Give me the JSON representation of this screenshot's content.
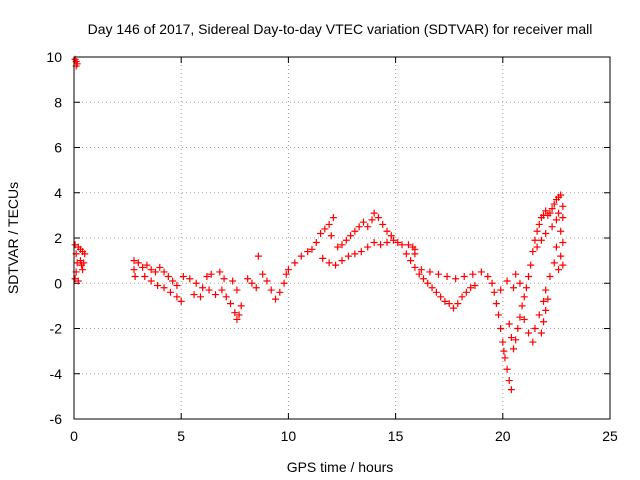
{
  "chart_data": {
    "type": "scatter",
    "title": "Day 146 of 2017, Sidereal Day-to-day VTEC variation (SDTVAR) for receiver mall",
    "xlabel": "GPS time / hours",
    "ylabel": "SDTVAR / TECUs",
    "xlim": [
      0,
      25
    ],
    "ylim": [
      -6,
      10
    ],
    "xticks": [
      0,
      5,
      10,
      15,
      20,
      25
    ],
    "yticks": [
      -6,
      -4,
      -2,
      0,
      2,
      4,
      6,
      8,
      10
    ],
    "xtick_labels": [
      "0",
      "5",
      "10",
      "15",
      "20",
      "25"
    ],
    "ytick_labels": [
      "-6",
      "-4",
      "-2",
      "0",
      "2",
      "4",
      "6",
      "8",
      "10"
    ],
    "grid": true,
    "marker": "+",
    "color": "#ff0000",
    "series": [
      {
        "name": "SDTVAR",
        "points": [
          [
            0.05,
            9.9
          ],
          [
            0.1,
            9.8
          ],
          [
            0.15,
            9.7
          ],
          [
            0.1,
            9.6
          ],
          [
            0.05,
            1.7
          ],
          [
            0.1,
            1.3
          ],
          [
            0.15,
            0.9
          ],
          [
            0.1,
            0.5
          ],
          [
            0.05,
            0.2
          ],
          [
            0.2,
            1.6
          ],
          [
            0.3,
            1.5
          ],
          [
            0.4,
            1.4
          ],
          [
            0.5,
            1.3
          ],
          [
            0.3,
            1.0
          ],
          [
            0.35,
            0.8
          ],
          [
            0.4,
            0.6
          ],
          [
            0.45,
            0.9
          ],
          [
            0.2,
            0.1
          ],
          [
            2.8,
            1.0
          ],
          [
            2.8,
            0.6
          ],
          [
            2.85,
            0.3
          ],
          [
            3.0,
            0.9
          ],
          [
            3.2,
            0.7
          ],
          [
            3.4,
            0.8
          ],
          [
            3.6,
            0.6
          ],
          [
            3.8,
            0.5
          ],
          [
            4.0,
            0.7
          ],
          [
            4.2,
            0.5
          ],
          [
            4.4,
            0.3
          ],
          [
            4.6,
            0.1
          ],
          [
            4.8,
            -0.1
          ],
          [
            3.3,
            0.3
          ],
          [
            3.6,
            0.1
          ],
          [
            3.9,
            -0.1
          ],
          [
            4.2,
            -0.2
          ],
          [
            4.5,
            -0.4
          ],
          [
            4.8,
            -0.6
          ],
          [
            5.0,
            -0.8
          ],
          [
            5.1,
            0.3
          ],
          [
            5.4,
            0.2
          ],
          [
            5.7,
            0.0
          ],
          [
            6.0,
            -0.2
          ],
          [
            6.3,
            -0.3
          ],
          [
            6.6,
            -0.5
          ],
          [
            6.9,
            -0.3
          ],
          [
            7.1,
            -0.6
          ],
          [
            7.3,
            -0.9
          ],
          [
            7.5,
            -1.3
          ],
          [
            7.6,
            -1.6
          ],
          [
            7.7,
            -1.4
          ],
          [
            7.8,
            -1.0
          ],
          [
            7.4,
            0.1
          ],
          [
            7.6,
            -0.3
          ],
          [
            6.4,
            0.4
          ],
          [
            6.8,
            0.5
          ],
          [
            7.0,
            0.2
          ],
          [
            5.6,
            -0.5
          ],
          [
            5.9,
            -0.6
          ],
          [
            6.2,
            0.3
          ],
          [
            8.1,
            0.2
          ],
          [
            8.3,
            0.0
          ],
          [
            8.5,
            -0.2
          ],
          [
            8.6,
            1.2
          ],
          [
            8.8,
            0.4
          ],
          [
            9.0,
            0.1
          ],
          [
            9.2,
            -0.3
          ],
          [
            9.4,
            -0.7
          ],
          [
            9.6,
            -0.4
          ],
          [
            9.8,
            0.0
          ],
          [
            9.9,
            0.4
          ],
          [
            10.0,
            0.6
          ],
          [
            10.3,
            0.9
          ],
          [
            10.6,
            1.2
          ],
          [
            10.9,
            1.4
          ],
          [
            11.1,
            1.5
          ],
          [
            11.3,
            1.8
          ],
          [
            11.5,
            2.2
          ],
          [
            11.7,
            2.4
          ],
          [
            11.9,
            2.6
          ],
          [
            12.1,
            2.9
          ],
          [
            12.0,
            2.1
          ],
          [
            12.3,
            1.6
          ],
          [
            12.5,
            1.7
          ],
          [
            12.7,
            1.9
          ],
          [
            12.9,
            2.1
          ],
          [
            13.1,
            2.3
          ],
          [
            13.3,
            2.5
          ],
          [
            13.5,
            2.7
          ],
          [
            13.7,
            2.5
          ],
          [
            13.9,
            2.8
          ],
          [
            14.0,
            3.1
          ],
          [
            14.2,
            2.9
          ],
          [
            14.4,
            2.6
          ],
          [
            14.6,
            2.3
          ],
          [
            14.8,
            2.1
          ],
          [
            11.6,
            1.1
          ],
          [
            11.9,
            0.9
          ],
          [
            12.2,
            0.8
          ],
          [
            12.5,
            1.0
          ],
          [
            12.8,
            1.2
          ],
          [
            13.1,
            1.3
          ],
          [
            13.4,
            1.4
          ],
          [
            13.7,
            1.6
          ],
          [
            14.0,
            1.8
          ],
          [
            14.3,
            1.7
          ],
          [
            14.6,
            1.8
          ],
          [
            14.9,
            1.9
          ],
          [
            15.1,
            1.8
          ],
          [
            15.3,
            1.7
          ],
          [
            15.6,
            1.7
          ],
          [
            15.8,
            1.6
          ],
          [
            15.9,
            1.5
          ],
          [
            15.9,
            1.3
          ],
          [
            15.5,
            1.3
          ],
          [
            15.7,
            1.0
          ],
          [
            15.9,
            0.7
          ],
          [
            16.1,
            0.4
          ],
          [
            16.3,
            0.2
          ],
          [
            16.5,
            0.0
          ],
          [
            16.7,
            -0.2
          ],
          [
            16.9,
            -0.4
          ],
          [
            17.1,
            -0.6
          ],
          [
            17.3,
            -0.8
          ],
          [
            17.5,
            -0.9
          ],
          [
            17.7,
            -1.1
          ],
          [
            17.9,
            -0.9
          ],
          [
            18.1,
            -0.6
          ],
          [
            18.3,
            -0.4
          ],
          [
            18.5,
            -0.2
          ],
          [
            18.7,
            -0.1
          ],
          [
            16.2,
            0.6
          ],
          [
            16.6,
            0.5
          ],
          [
            17.0,
            0.4
          ],
          [
            17.4,
            0.3
          ],
          [
            17.8,
            0.2
          ],
          [
            18.2,
            0.3
          ],
          [
            18.6,
            0.4
          ],
          [
            19.0,
            0.5
          ],
          [
            19.3,
            0.3
          ],
          [
            19.5,
            0.0
          ],
          [
            19.6,
            -0.4
          ],
          [
            19.7,
            -0.9
          ],
          [
            19.8,
            -1.4
          ],
          [
            19.9,
            -2.0
          ],
          [
            20.0,
            -2.6
          ],
          [
            20.05,
            -3.0
          ],
          [
            20.1,
            -3.3
          ],
          [
            20.2,
            -3.8
          ],
          [
            20.3,
            -4.3
          ],
          [
            20.4,
            -4.7
          ],
          [
            20.3,
            -1.8
          ],
          [
            20.4,
            -2.4
          ],
          [
            20.5,
            -2.9
          ],
          [
            20.6,
            -2.5
          ],
          [
            20.7,
            -2.0
          ],
          [
            20.8,
            -1.5
          ],
          [
            20.9,
            -1.0
          ],
          [
            21.0,
            -0.6
          ],
          [
            21.1,
            -0.2
          ],
          [
            21.2,
            0.3
          ],
          [
            21.3,
            0.8
          ],
          [
            21.4,
            1.4
          ],
          [
            21.5,
            1.9
          ],
          [
            21.6,
            2.3
          ],
          [
            21.7,
            2.6
          ],
          [
            21.8,
            2.9
          ],
          [
            21.9,
            3.0
          ],
          [
            22.0,
            3.2
          ],
          [
            22.1,
            3.0
          ],
          [
            22.2,
            3.1
          ],
          [
            22.3,
            3.3
          ],
          [
            22.4,
            3.5
          ],
          [
            22.5,
            3.7
          ],
          [
            22.6,
            3.8
          ],
          [
            22.7,
            3.9
          ],
          [
            22.8,
            3.4
          ],
          [
            22.8,
            2.9
          ],
          [
            22.7,
            2.3
          ],
          [
            22.8,
            1.8
          ],
          [
            22.7,
            1.2
          ],
          [
            22.8,
            0.8
          ],
          [
            22.6,
            0.6
          ],
          [
            21.0,
            -1.6
          ],
          [
            21.2,
            -2.2
          ],
          [
            21.4,
            -2.6
          ],
          [
            21.5,
            -2.0
          ],
          [
            21.7,
            -1.4
          ],
          [
            21.9,
            -0.8
          ],
          [
            22.0,
            -0.3
          ],
          [
            22.2,
            0.3
          ],
          [
            22.4,
            0.9
          ],
          [
            22.5,
            1.6
          ],
          [
            22.1,
            -0.7
          ],
          [
            22.0,
            -1.2
          ],
          [
            21.9,
            -1.7
          ],
          [
            21.8,
            -2.2
          ],
          [
            20.8,
            0.0
          ],
          [
            20.6,
            0.4
          ],
          [
            20.5,
            -0.2
          ],
          [
            20.2,
            0.1
          ],
          [
            19.9,
            -0.3
          ],
          [
            21.6,
            1.6
          ],
          [
            21.8,
            1.9
          ],
          [
            22.0,
            2.2
          ],
          [
            22.3,
            2.5
          ],
          [
            22.5,
            2.8
          ],
          [
            22.6,
            3.1
          ]
        ]
      }
    ]
  }
}
